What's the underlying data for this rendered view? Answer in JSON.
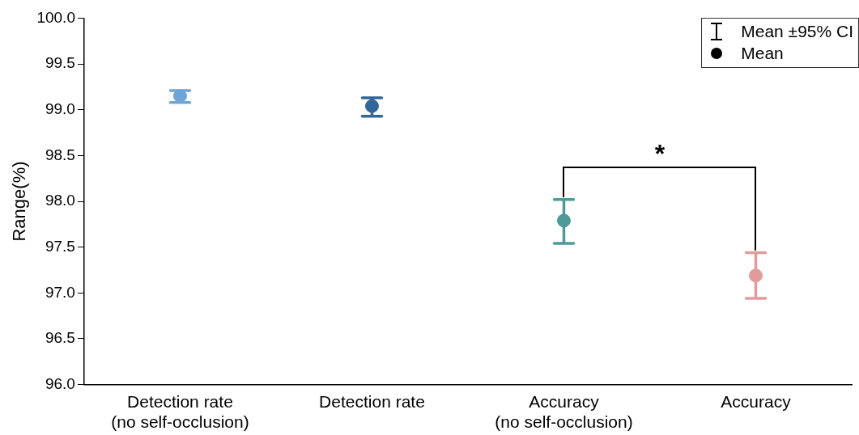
{
  "chart_data": {
    "type": "scatter",
    "ylabel": "Range(%)",
    "categories": [
      "Detection rate\n(no self-occlusion)",
      "Detection rate",
      "Accuracy\n(no self-occlusion)",
      "Accuracy"
    ],
    "values": [
      99.15,
      99.04,
      97.79,
      97.19
    ],
    "colors": [
      "#6fa5d6",
      "#336699",
      "#4e9a98",
      "#e39a9b"
    ],
    "errors": [
      [
        99.08,
        99.21
      ],
      [
        98.93,
        99.13
      ],
      [
        97.54,
        98.02
      ],
      [
        96.94,
        97.44
      ]
    ],
    "ylim": [
      96.0,
      100.0
    ],
    "yticks": [
      {
        "value": 96,
        "label": "96.0"
      },
      {
        "value": 96.5,
        "label": "96.5"
      },
      {
        "value": 97,
        "label": "97.0"
      },
      {
        "value": 97.5,
        "label": "97.5"
      },
      {
        "value": 98,
        "label": "98.0"
      },
      {
        "value": 98.5,
        "label": "98.5"
      },
      {
        "value": 99,
        "label": "99.0"
      },
      {
        "value": 99.5,
        "label": "99.5"
      },
      {
        "value": 100,
        "label": "100.0"
      }
    ],
    "grid": false,
    "marker": "circle",
    "annotations": [
      "*",
      "Mean ±95% CI",
      "Mean"
    ]
  }
}
